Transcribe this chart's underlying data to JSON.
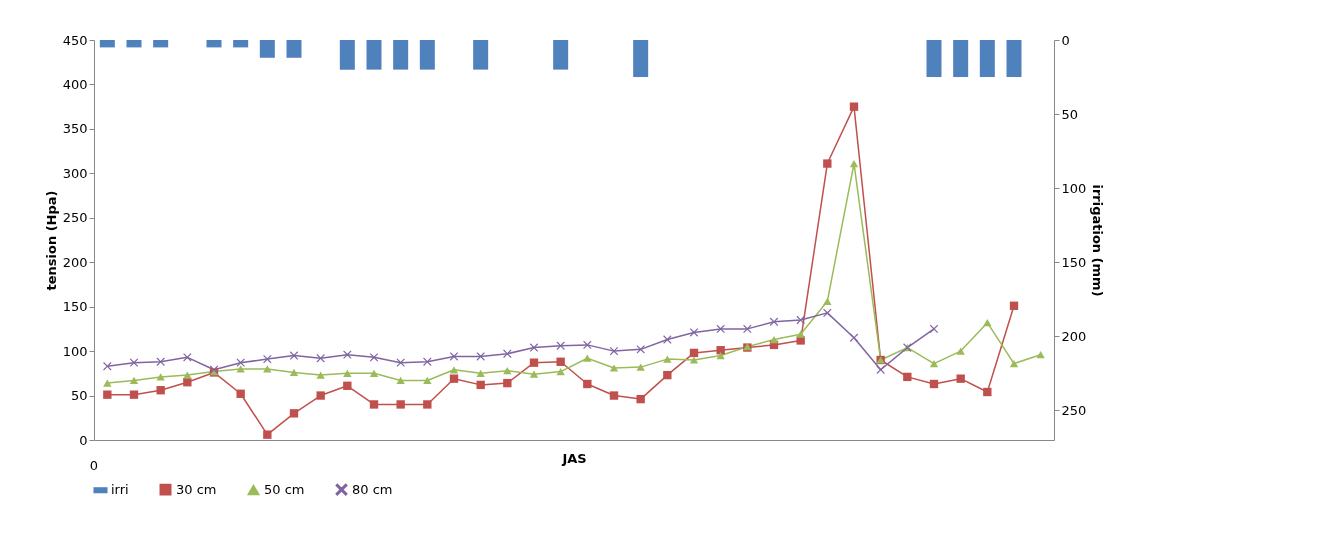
{
  "chart_data": {
    "type": "line",
    "xlabel": "JAS",
    "ylabel": "tension (Hpa)",
    "y2label": "irrigation (mm)",
    "categories": [
      null,
      null,
      null,
      null,
      null,
      null,
      null,
      null,
      null,
      null,
      null,
      null,
      null,
      null,
      null,
      null,
      null,
      null,
      null,
      null,
      null,
      null,
      null,
      null,
      null,
      null,
      null,
      null,
      null,
      null,
      null,
      null,
      null,
      null,
      null,
      null
    ],
    "annotations": [
      "0"
    ],
    "ylim": [
      0,
      450
    ],
    "yticks": [
      0,
      50,
      100,
      150,
      200,
      250,
      300,
      350,
      400,
      450
    ],
    "y2lim": [
      270,
      0
    ],
    "y2ticks": [
      0,
      50,
      100,
      150,
      200,
      250
    ],
    "grid": false,
    "legend": "bottom",
    "series": [
      {
        "name": "irri",
        "type": "bar",
        "axis": "y2",
        "color": "#4f81bd",
        "values": [
          5,
          5,
          5,
          null,
          5,
          5,
          12,
          12,
          null,
          20,
          20,
          20,
          20,
          null,
          20,
          null,
          null,
          20,
          null,
          null,
          25,
          null,
          null,
          null,
          null,
          null,
          null,
          null,
          null,
          null,
          null,
          25,
          25,
          25,
          25,
          null
        ]
      },
      {
        "name": "30 cm",
        "color": "#c0504d",
        "marker": "square",
        "values": [
          51,
          51,
          56,
          65,
          76,
          52,
          6,
          30,
          50,
          61,
          40,
          40,
          40,
          69,
          62,
          64,
          87,
          88,
          63,
          50,
          46,
          73,
          98,
          101,
          104,
          107,
          112,
          311,
          375,
          90,
          71,
          63,
          69,
          54,
          151,
          null
        ]
      },
      {
        "name": "50 cm",
        "color": "#9bbb59",
        "marker": "triangle",
        "values": [
          64,
          67,
          71,
          73,
          77,
          80,
          80,
          76,
          73,
          75,
          75,
          67,
          67,
          79,
          75,
          78,
          74,
          77,
          92,
          81,
          82,
          91,
          90,
          95,
          105,
          113,
          119,
          156,
          311,
          90,
          104,
          86,
          100,
          132,
          86,
          96
        ]
      },
      {
        "name": "80 cm",
        "color": "#8064a2",
        "marker": "cross",
        "values": [
          83,
          87,
          88,
          93,
          79,
          87,
          91,
          95,
          92,
          96,
          93,
          87,
          88,
          94,
          94,
          97,
          104,
          106,
          107,
          100,
          102,
          113,
          121,
          125,
          125,
          133,
          135,
          143,
          115,
          79,
          104,
          125,
          null,
          null,
          null,
          null
        ]
      }
    ]
  }
}
